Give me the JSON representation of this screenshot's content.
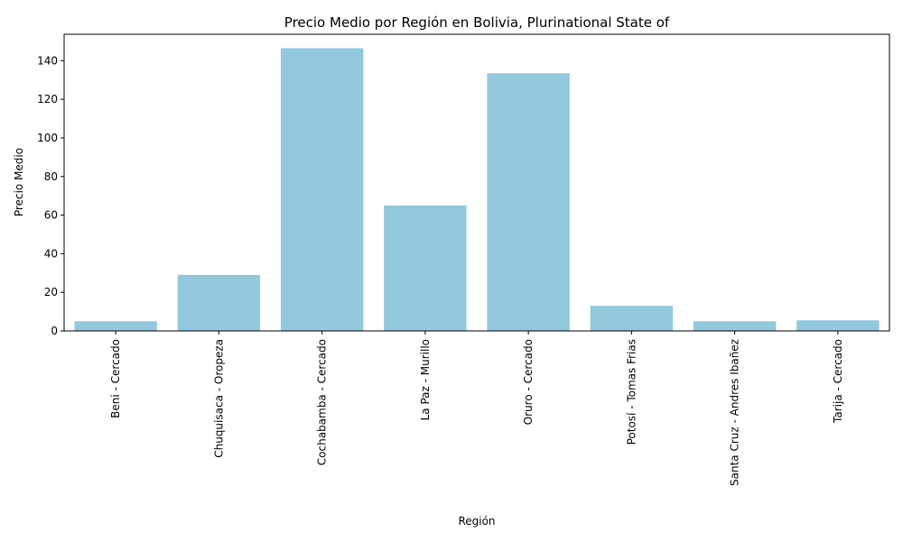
{
  "chart_data": {
    "type": "bar",
    "title": "Precio Medio por Región en Bolivia, Plurinational State of",
    "xlabel": "Región",
    "ylabel": "Precio Medio",
    "categories": [
      "Beni - Cercado",
      "Chuquisaca - Oropeza",
      "Cochabamba - Cercado",
      "La Paz - Murillo",
      "Oruro - Cercado",
      "Potosí - Tomas Frias",
      "Santa Cruz - Andres Ibañez",
      "Tarija - Cercado"
    ],
    "values": [
      5.0,
      29.0,
      146.5,
      65.0,
      133.5,
      13.0,
      5.0,
      5.5
    ],
    "ylim": [
      0,
      153.7
    ],
    "yticks": [
      0,
      20,
      40,
      60,
      80,
      100,
      120,
      140
    ],
    "bar_color": "#92c9df",
    "grid": false,
    "legend": "none"
  }
}
